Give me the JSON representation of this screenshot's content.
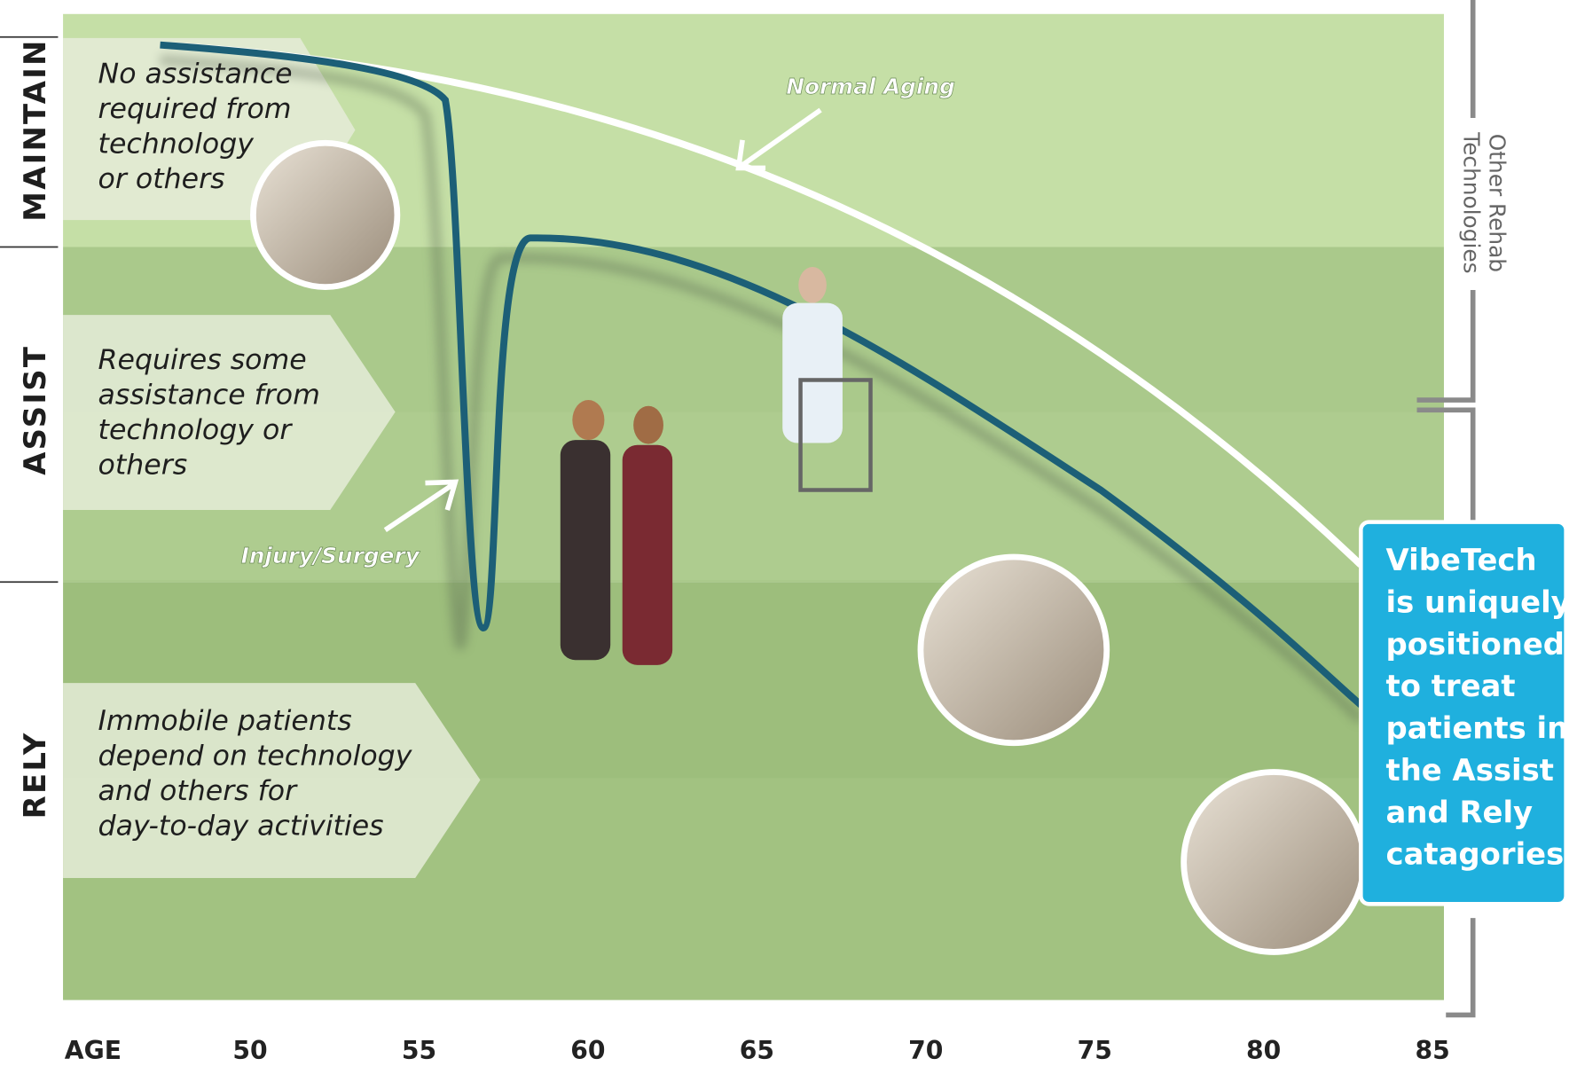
{
  "left_labels": [
    "MAINTAIN",
    "ASSIST",
    "RELY"
  ],
  "descriptions": [
    [
      "No assistance",
      "required from",
      "technology",
      "or others"
    ],
    [
      "Requires some",
      "assistance from",
      "technology or",
      "others"
    ],
    [
      "Immobile patients",
      "depend on technology",
      "and others for",
      "day-to-day activities"
    ]
  ],
  "annotations": {
    "normal_aging": "Normal Aging",
    "injury": "Injury/Surgery"
  },
  "bracket_label": [
    "Other Rehab",
    "Technologies"
  ],
  "callout": [
    "VibeTech",
    "is uniquely",
    "positioned",
    "to treat",
    "patients in",
    "the Assist",
    "and Rely",
    "catagories"
  ],
  "axis": {
    "label": "AGE",
    "ticks": [
      50,
      55,
      60,
      65,
      70,
      75,
      80,
      85
    ]
  }
}
